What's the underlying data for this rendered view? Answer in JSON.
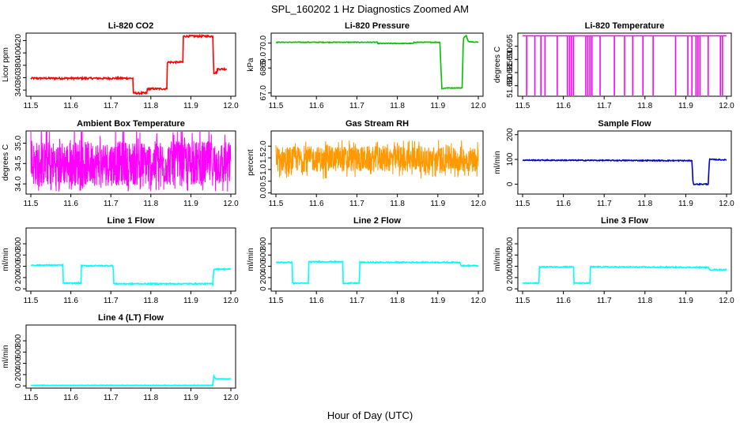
{
  "figure": {
    "title": "SPL_160202  1 Hz Diagnostics Zoomed AM",
    "xlabel": "Hour of Day (UTC)"
  },
  "chart_data": [
    {
      "type": "line",
      "title": "Li-820 CO2",
      "ylabel": "Licor ppm",
      "color": "#ff0000",
      "xlim": [
        11.5,
        12.0
      ],
      "ylim": [
        330,
        432
      ],
      "xticks": [
        "11.5",
        "11.6",
        "11.7",
        "11.8",
        "11.9",
        "12.0"
      ],
      "yticks": [
        "340",
        "360",
        "380",
        "400",
        "420"
      ],
      "noise": 1.5,
      "series": [
        {
          "x": [
            11.5,
            11.755,
            11.756,
            11.79,
            11.791,
            11.84,
            11.841,
            11.88,
            11.881,
            11.955,
            11.957,
            11.965,
            11.966,
            11.99
          ],
          "y": [
            359,
            359,
            335,
            335,
            342,
            342,
            385,
            385,
            427,
            427,
            368,
            368,
            374,
            374
          ]
        }
      ]
    },
    {
      "type": "line",
      "title": "Li-820 Pressure",
      "ylabel": "kPa",
      "color": "#00c000",
      "xlim": [
        11.5,
        12.0
      ],
      "ylim": [
        66.8,
        70.6
      ],
      "xticks": [
        "11.5",
        "11.6",
        "11.7",
        "11.8",
        "11.9",
        "12.0"
      ],
      "yticks": [
        "67.0",
        "68.5",
        "69.0",
        "70.0"
      ],
      "yticks_at": [
        67.0,
        68.5,
        69.0,
        70.0
      ],
      "noise": 0.02,
      "series": [
        {
          "x": [
            11.5,
            11.75,
            11.751,
            11.84,
            11.841,
            11.905,
            11.91,
            11.92,
            11.96,
            11.963,
            11.97,
            11.975,
            12.0
          ],
          "y": [
            70.05,
            70.05,
            69.98,
            69.98,
            70.05,
            70.05,
            67.25,
            67.3,
            67.3,
            70.3,
            70.45,
            70.1,
            70.05
          ]
        }
      ]
    },
    {
      "type": "line",
      "title": "Li-820 Temperature",
      "ylabel": "degrees C",
      "color": "#ff00ff",
      "xlim": [
        11.5,
        12.0
      ],
      "ylim": [
        51.676,
        51.7
      ],
      "xticks": [
        "11.5",
        "11.6",
        "11.7",
        "11.8",
        "11.9",
        "12.0"
      ],
      "yticks": [
        "51.680",
        "51.685",
        "51.690",
        "51.695"
      ],
      "baseline": 51.699,
      "spikes_x": [
        11.51,
        11.53,
        11.545,
        11.555,
        11.585,
        11.61,
        11.615,
        11.62,
        11.625,
        11.655,
        11.66,
        11.665,
        11.67,
        11.69,
        11.725,
        11.75,
        11.77,
        11.795,
        11.82,
        11.875,
        11.905,
        11.915,
        11.925,
        11.93,
        11.935,
        11.955,
        11.985,
        11.99
      ],
      "spikes_low": 51.676
    },
    {
      "type": "line",
      "title": "Ambient Box Temperature",
      "ylabel": "degrees C",
      "color": "#ff00ff",
      "xlim": [
        11.5,
        12.0
      ],
      "ylim": [
        33.75,
        35.3
      ],
      "xticks": [
        "11.5",
        "11.6",
        "11.7",
        "11.8",
        "11.9",
        "12.0"
      ],
      "yticks": [
        "34.0",
        "34.5",
        "35.0"
      ],
      "yticks_at": [
        34.0,
        34.5,
        35.0
      ],
      "noise_band": {
        "lo": 33.95,
        "hi": 35.05,
        "center": 34.2
      }
    },
    {
      "type": "line",
      "title": "Gas Stream RH",
      "ylabel": "percent",
      "color": "#ff9900",
      "xlim": [
        11.5,
        12.0
      ],
      "ylim": [
        -0.05,
        2.65
      ],
      "xticks": [
        "11.5",
        "11.6",
        "11.7",
        "11.8",
        "11.9",
        "12.0"
      ],
      "yticks": [
        "0.0",
        "0.5",
        "1.0",
        "1.5",
        "2.0"
      ],
      "noise_band": {
        "lo": 0.9,
        "hi": 2.0,
        "center": 1.45
      }
    },
    {
      "type": "line",
      "title": "Sample Flow",
      "ylabel": "ml/min",
      "color": "#0000cc",
      "xlim": [
        11.5,
        12.0
      ],
      "ylim": [
        -40,
        215
      ],
      "xticks": [
        "11.5",
        "11.6",
        "11.7",
        "11.8",
        "11.9",
        "12.0"
      ],
      "yticks": [
        "0",
        "100",
        "200"
      ],
      "noise": 2,
      "series": [
        {
          "x": [
            11.5,
            11.915,
            11.918,
            11.955,
            11.958,
            12.0
          ],
          "y": [
            97,
            95,
            0,
            0,
            100,
            98
          ]
        }
      ]
    },
    {
      "type": "line",
      "title": "Line 1 Flow",
      "ylabel": "ml/min",
      "color": "#00ffff",
      "xlim": [
        11.5,
        12.0
      ],
      "ylim": [
        -40,
        1080
      ],
      "xticks": [
        "11.5",
        "11.6",
        "11.7",
        "11.8",
        "11.9",
        "12.0"
      ],
      "yticks": [
        "0",
        "200",
        "400",
        "600",
        "800"
      ],
      "noise": 10,
      "series": [
        {
          "x": [
            11.5,
            11.58,
            11.581,
            11.625,
            11.626,
            11.706,
            11.707,
            11.955,
            11.957,
            12.0
          ],
          "y": [
            420,
            420,
            100,
            100,
            410,
            410,
            90,
            90,
            350,
            350
          ]
        }
      ]
    },
    {
      "type": "line",
      "title": "Line 2 Flow",
      "ylabel": "ml/min",
      "color": "#00ffff",
      "xlim": [
        11.5,
        12.0
      ],
      "ylim": [
        -40,
        1080
      ],
      "xticks": [
        "11.5",
        "11.6",
        "11.7",
        "11.8",
        "11.9",
        "12.0"
      ],
      "yticks": [
        "0",
        "200",
        "400",
        "600",
        "800"
      ],
      "noise": 10,
      "series": [
        {
          "x": [
            11.5,
            11.54,
            11.541,
            11.58,
            11.581,
            11.665,
            11.666,
            11.706,
            11.707,
            11.955,
            11.957,
            12.0
          ],
          "y": [
            470,
            470,
            100,
            100,
            480,
            480,
            100,
            100,
            470,
            470,
            410,
            410
          ]
        }
      ]
    },
    {
      "type": "line",
      "title": "Line 3 Flow",
      "ylabel": "ml/min",
      "color": "#00ffff",
      "xlim": [
        11.5,
        12.0
      ],
      "ylim": [
        -40,
        1080
      ],
      "xticks": [
        "11.5",
        "11.6",
        "11.7",
        "11.8",
        "11.9",
        "12.0"
      ],
      "yticks": [
        "0",
        "200",
        "400",
        "600",
        "800"
      ],
      "noise": 10,
      "series": [
        {
          "x": [
            11.5,
            11.54,
            11.541,
            11.625,
            11.626,
            11.665,
            11.666,
            11.955,
            11.957,
            12.0
          ],
          "y": [
            100,
            100,
            390,
            390,
            100,
            100,
            390,
            380,
            340,
            340
          ]
        }
      ]
    },
    {
      "type": "line",
      "title": "Line 4 (LT) Flow",
      "ylabel": "ml/min",
      "color": "#00ffff",
      "xlim": [
        11.5,
        12.0
      ],
      "ylim": [
        -40,
        1080
      ],
      "xticks": [
        "11.5",
        "11.6",
        "11.7",
        "11.8",
        "11.9",
        "12.0"
      ],
      "yticks": [
        "0",
        "200",
        "400",
        "600",
        "800"
      ],
      "noise": 4,
      "series": [
        {
          "x": [
            11.5,
            11.955,
            11.957,
            11.962,
            11.965,
            12.0
          ],
          "y": [
            10,
            10,
            180,
            130,
            125,
            125
          ]
        }
      ]
    }
  ]
}
